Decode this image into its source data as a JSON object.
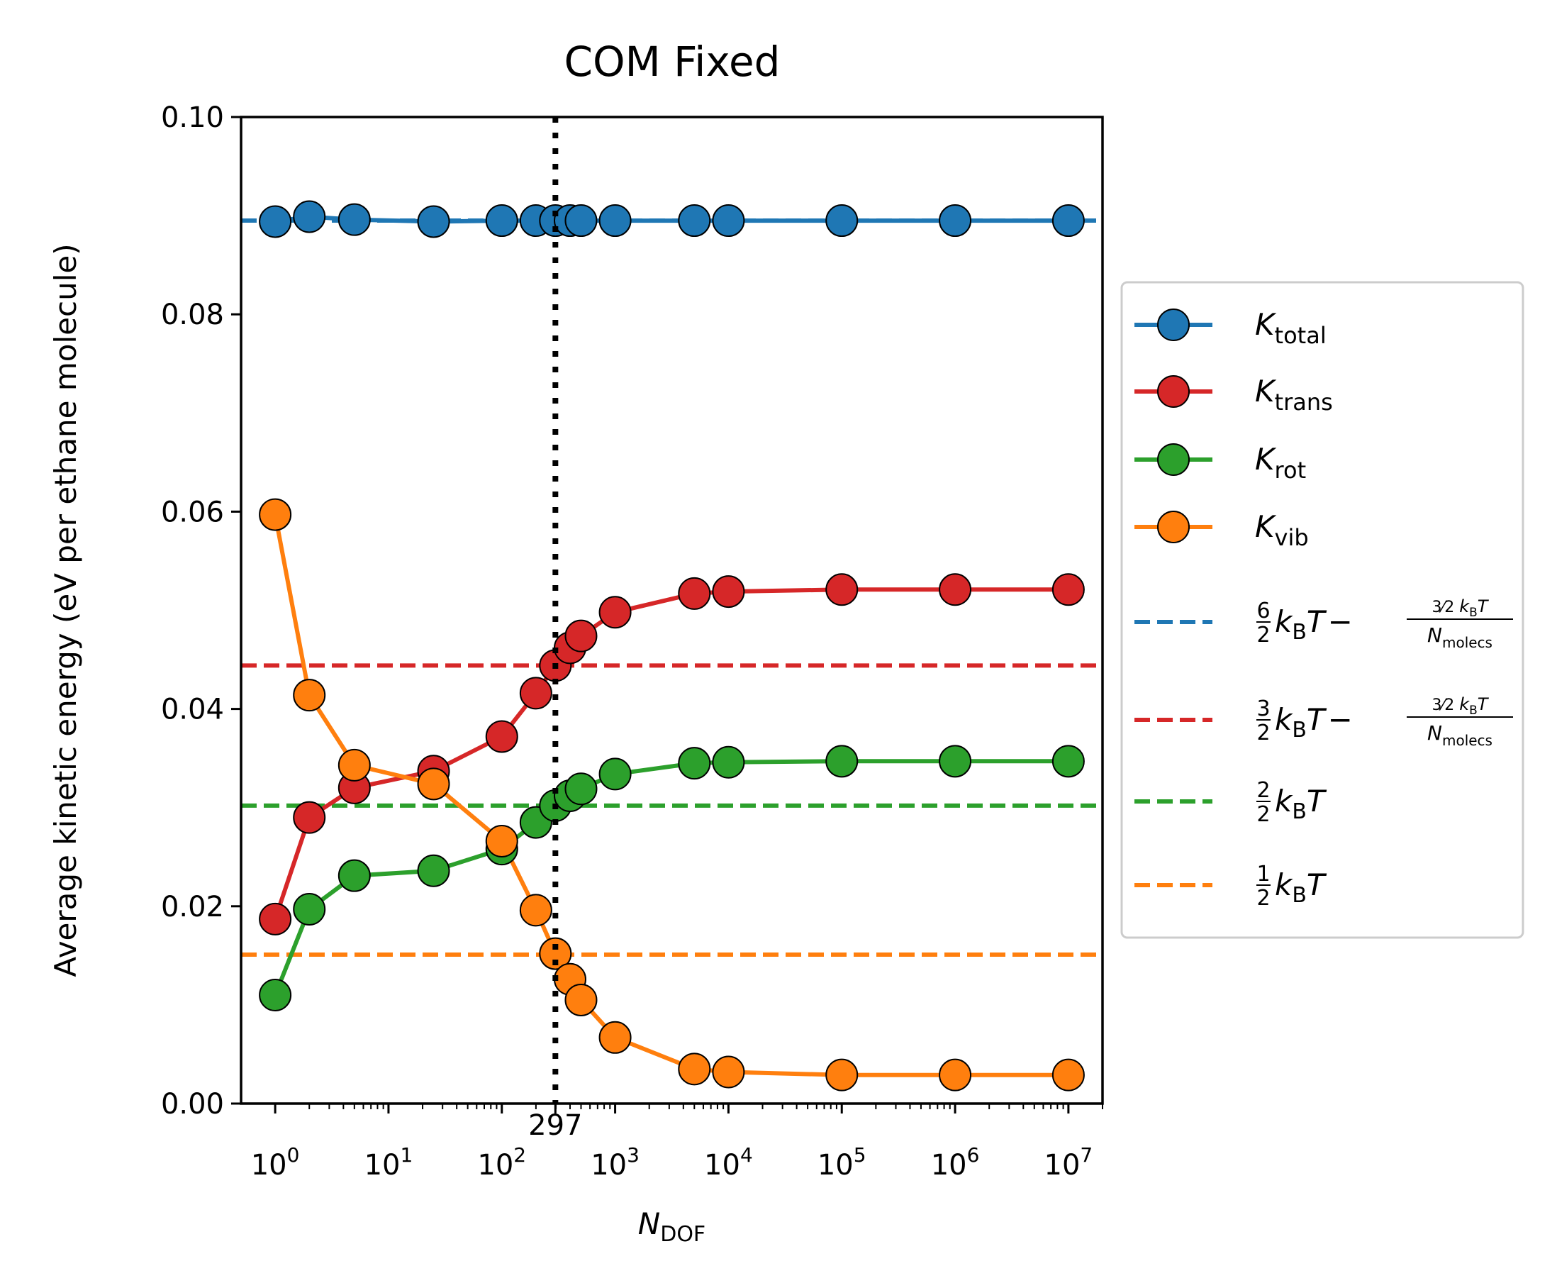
{
  "chart_data": {
    "type": "line",
    "title": "COM Fixed",
    "xlabel": {
      "main": "N",
      "sub": "DOF"
    },
    "ylabel": "Average kinetic energy (eV per ethane molecule)",
    "xscale": "log",
    "xlim": [
      0.5,
      20000000
    ],
    "ylim": [
      0,
      0.1
    ],
    "yticks": [
      "0.00",
      "0.02",
      "0.04",
      "0.06",
      "0.08",
      "0.10"
    ],
    "xticks": [
      {
        "value": 1,
        "base": "10",
        "exp": "0"
      },
      {
        "value": 10,
        "base": "10",
        "exp": "1"
      },
      {
        "value": 100,
        "base": "10",
        "exp": "2"
      },
      {
        "value": 1000,
        "base": "10",
        "exp": "3"
      },
      {
        "value": 10000,
        "base": "10",
        "exp": "4"
      },
      {
        "value": 100000,
        "base": "10",
        "exp": "5"
      },
      {
        "value": 1000000,
        "base": "10",
        "exp": "6"
      },
      {
        "value": 10000000,
        "base": "10",
        "exp": "7"
      }
    ],
    "vline": {
      "x": 297,
      "label": "297",
      "style": "dotted",
      "color": "#000000"
    },
    "x": [
      1,
      2,
      5,
      25,
      100,
      200,
      297,
      400,
      500,
      1000,
      5000,
      10000,
      100000,
      1000000,
      10000000
    ],
    "series": [
      {
        "name": "K",
        "sub": "total",
        "color": "#1f77b4",
        "values": [
          0.0894,
          0.0899,
          0.0896,
          0.0894,
          0.0895,
          0.0895,
          0.0895,
          0.0895,
          0.0895,
          0.0895,
          0.0895,
          0.0895,
          0.0895,
          0.0895,
          0.0895
        ]
      },
      {
        "name": "K",
        "sub": "trans",
        "color": "#d62728",
        "values": [
          0.0187,
          0.029,
          0.032,
          0.0337,
          0.0372,
          0.0416,
          0.0444,
          0.0462,
          0.0474,
          0.0498,
          0.0517,
          0.0519,
          0.0521,
          0.0521,
          0.0521
        ]
      },
      {
        "name": "K",
        "sub": "rot",
        "color": "#2ca02c",
        "values": [
          0.011,
          0.0197,
          0.0231,
          0.0236,
          0.0258,
          0.0285,
          0.0302,
          0.0312,
          0.0319,
          0.0334,
          0.0345,
          0.0346,
          0.0347,
          0.0347,
          0.0347
        ]
      },
      {
        "name": "K",
        "sub": "vib",
        "color": "#ff7f0e",
        "values": [
          0.0597,
          0.0414,
          0.0343,
          0.0324,
          0.0266,
          0.0196,
          0.0152,
          0.0126,
          0.0105,
          0.0067,
          0.0035,
          0.0032,
          0.0029,
          0.0029,
          0.0029
        ]
      }
    ],
    "hlines": [
      {
        "label": "6/2 k_B T − (3/2 k_B T)/N_molecs",
        "y": 0.0895,
        "color": "#1f77b4"
      },
      {
        "label": "3/2 k_B T − (3/2 k_B T)/N_molecs",
        "y": 0.0444,
        "color": "#d62728"
      },
      {
        "label": "2/2 k_B T",
        "y": 0.0302,
        "color": "#2ca02c"
      },
      {
        "label": "1/2 k_B T",
        "y": 0.0151,
        "color": "#ff7f0e"
      }
    ],
    "legend": {
      "placement": "right, outside plot",
      "entries": [
        {
          "kind": "marker-line",
          "main": "K",
          "sub": "total",
          "color": "#1f77b4"
        },
        {
          "kind": "marker-line",
          "main": "K",
          "sub": "trans",
          "color": "#d62728"
        },
        {
          "kind": "marker-line",
          "main": "K",
          "sub": "rot",
          "color": "#2ca02c"
        },
        {
          "kind": "marker-line",
          "main": "K",
          "sub": "vib",
          "color": "#ff7f0e"
        },
        {
          "kind": "dashed",
          "coefNum": "6",
          "coefDen": "2",
          "kB": "k",
          "kBsub": "B",
          "T": "T",
          "minus": "−",
          "fracNumCoef": "3/2",
          "fracDen": "N",
          "fracDenSub": "molecs",
          "color": "#1f77b4"
        },
        {
          "kind": "dashed",
          "coefNum": "3",
          "coefDen": "2",
          "kB": "k",
          "kBsub": "B",
          "T": "T",
          "minus": "−",
          "fracNumCoef": "3/2",
          "fracDen": "N",
          "fracDenSub": "molecs",
          "color": "#d62728"
        },
        {
          "kind": "dashed",
          "coefNum": "2",
          "coefDen": "2",
          "kB": "k",
          "kBsub": "B",
          "T": "T",
          "color": "#2ca02c"
        },
        {
          "kind": "dashed",
          "coefNum": "1",
          "coefDen": "2",
          "kB": "k",
          "kBsub": "B",
          "T": "T",
          "color": "#ff7f0e"
        }
      ]
    }
  }
}
